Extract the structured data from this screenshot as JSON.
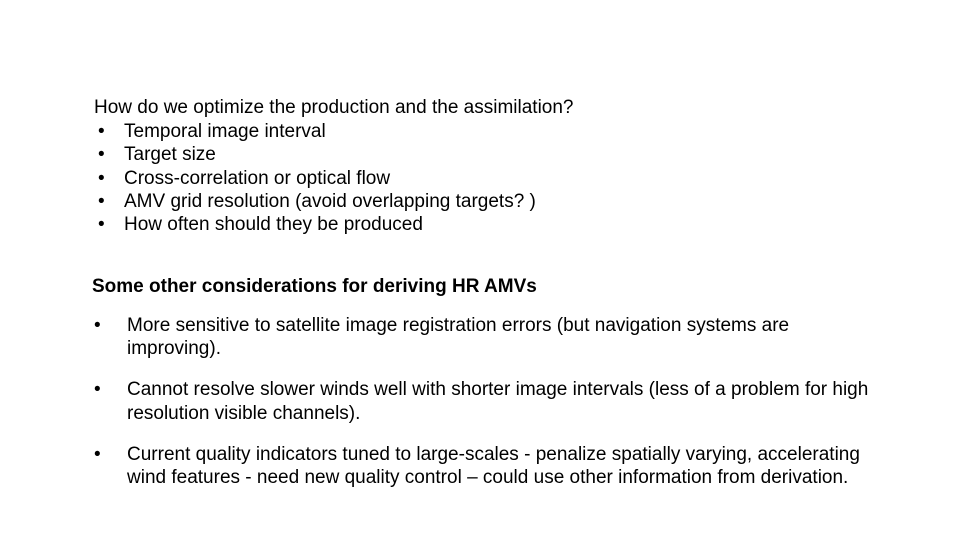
{
  "text_color": "#000000",
  "background_color": "#ffffff",
  "font_family": "Arial",
  "intro": {
    "question": "How do we optimize the production and the assimilation?",
    "items": [
      "Temporal image interval",
      "Target size",
      "Cross-correlation or optical flow",
      "AMV grid resolution (avoid overlapping targets? )",
      "How often should they be produced"
    ],
    "font_size_pt": 19
  },
  "section": {
    "heading": "Some other considerations for deriving HR AMVs",
    "heading_font_size_pt": 19,
    "heading_font_weight": "bold",
    "items": [
      "More sensitive to satellite image registration errors (but navigation systems are improving).",
      "Cannot resolve slower winds well with shorter image intervals (less of a problem for high resolution visible channels).",
      "Current quality indicators tuned to large-scales - penalize spatially varying, accelerating wind features - need new quality control – could use other information from derivation."
    ],
    "font_size_pt": 19
  },
  "bullet_glyph": "•"
}
